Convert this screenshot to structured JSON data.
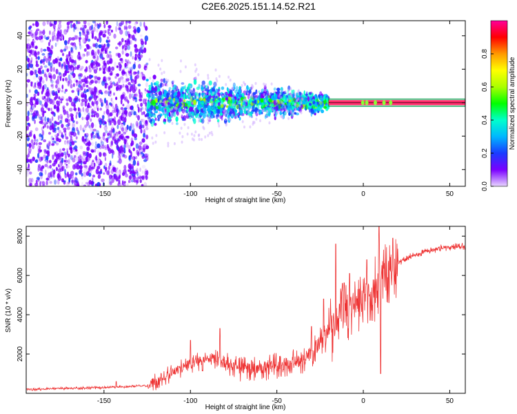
{
  "figure_title": "C2E6.2025.151.14.52.R21",
  "colors": {
    "snr_line": "#ee3333",
    "zero_band": "#ff2a6a",
    "zero_band_edge": "#14a85a",
    "spectrogram_scatter": "#7a1aff",
    "spectrogram_core": "#2ad6ff"
  },
  "chart_data": [
    {
      "type": "heatmap",
      "xlabel": "Height of straight line (km)",
      "ylabel": "Frequency (Hz)",
      "xlim": [
        -195,
        59
      ],
      "ylim": [
        -50,
        49
      ],
      "x_ticks": [
        -150,
        -100,
        -50,
        0,
        50
      ],
      "y_ticks": [
        -40,
        -20,
        0,
        20,
        40
      ],
      "colorbar": {
        "label": "Normalized spectral amplitude",
        "range": [
          0.0,
          1.0
        ],
        "ticks": [
          "0.0",
          "0.2",
          "0.4",
          "0.6",
          "0.8"
        ],
        "tick_values": [
          0.0,
          0.2,
          0.4,
          0.6,
          0.8
        ],
        "colormap": [
          "#e9d6ff",
          "#7a00ff",
          "#1a3cff",
          "#00b7ff",
          "#00ffcc",
          "#00ff00",
          "#aaff00",
          "#ffff00",
          "#ff9900",
          "#ff0000",
          "#ff0099"
        ]
      },
      "regions": [
        {
          "x_range": [
            -195,
            -125
          ],
          "freq_spread_hz": 50,
          "amplitude": 0.12,
          "description": "broadband noise"
        },
        {
          "x_range": [
            -125,
            -20
          ],
          "freq_spread_hz": 8,
          "amplitude": 0.3
        },
        {
          "x_range": [
            -20,
            59
          ],
          "freq_spread_hz": 1.5,
          "amplitude": 0.95
        }
      ]
    },
    {
      "type": "line",
      "xlabel": "Height of straight line (km)",
      "ylabel": "SNR (10 * v/v)",
      "xlim": [
        -195,
        59
      ],
      "ylim": [
        0,
        8500
      ],
      "x_ticks": [
        -150,
        -100,
        -50,
        0,
        50
      ],
      "y_ticks": [
        2000,
        4000,
        6000,
        8000
      ],
      "series": [
        {
          "x": [
            -195,
            -170,
            -145,
            -125,
            -115,
            -105,
            -95,
            -88,
            -80,
            -70,
            -60,
            -50,
            -40,
            -32,
            -25,
            -18,
            -12,
            -6,
            0,
            6,
            9,
            12,
            18,
            25,
            35,
            45,
            59
          ],
          "y": [
            200,
            250,
            300,
            400,
            800,
            1300,
            1600,
            1800,
            1500,
            1200,
            1300,
            1400,
            1600,
            1900,
            2600,
            3300,
            4000,
            4400,
            4700,
            5200,
            5600,
            6000,
            6500,
            6900,
            7200,
            7400,
            7500
          ]
        }
      ],
      "spikes": [
        {
          "x": -143,
          "y": 600
        },
        {
          "x": -100,
          "y": 2700
        },
        {
          "x": -83,
          "y": 3300
        },
        {
          "x": -30,
          "y": 3400
        },
        {
          "x": -23,
          "y": 4800
        },
        {
          "x": -16,
          "y": 7600
        },
        {
          "x": -12,
          "y": 5600
        },
        {
          "x": -8,
          "y": 6100
        },
        {
          "x": 2,
          "y": 6800
        },
        {
          "x": 9,
          "y": 8500
        },
        {
          "x": 10,
          "y": 1000
        },
        {
          "x": 17,
          "y": 7900
        }
      ]
    }
  ]
}
